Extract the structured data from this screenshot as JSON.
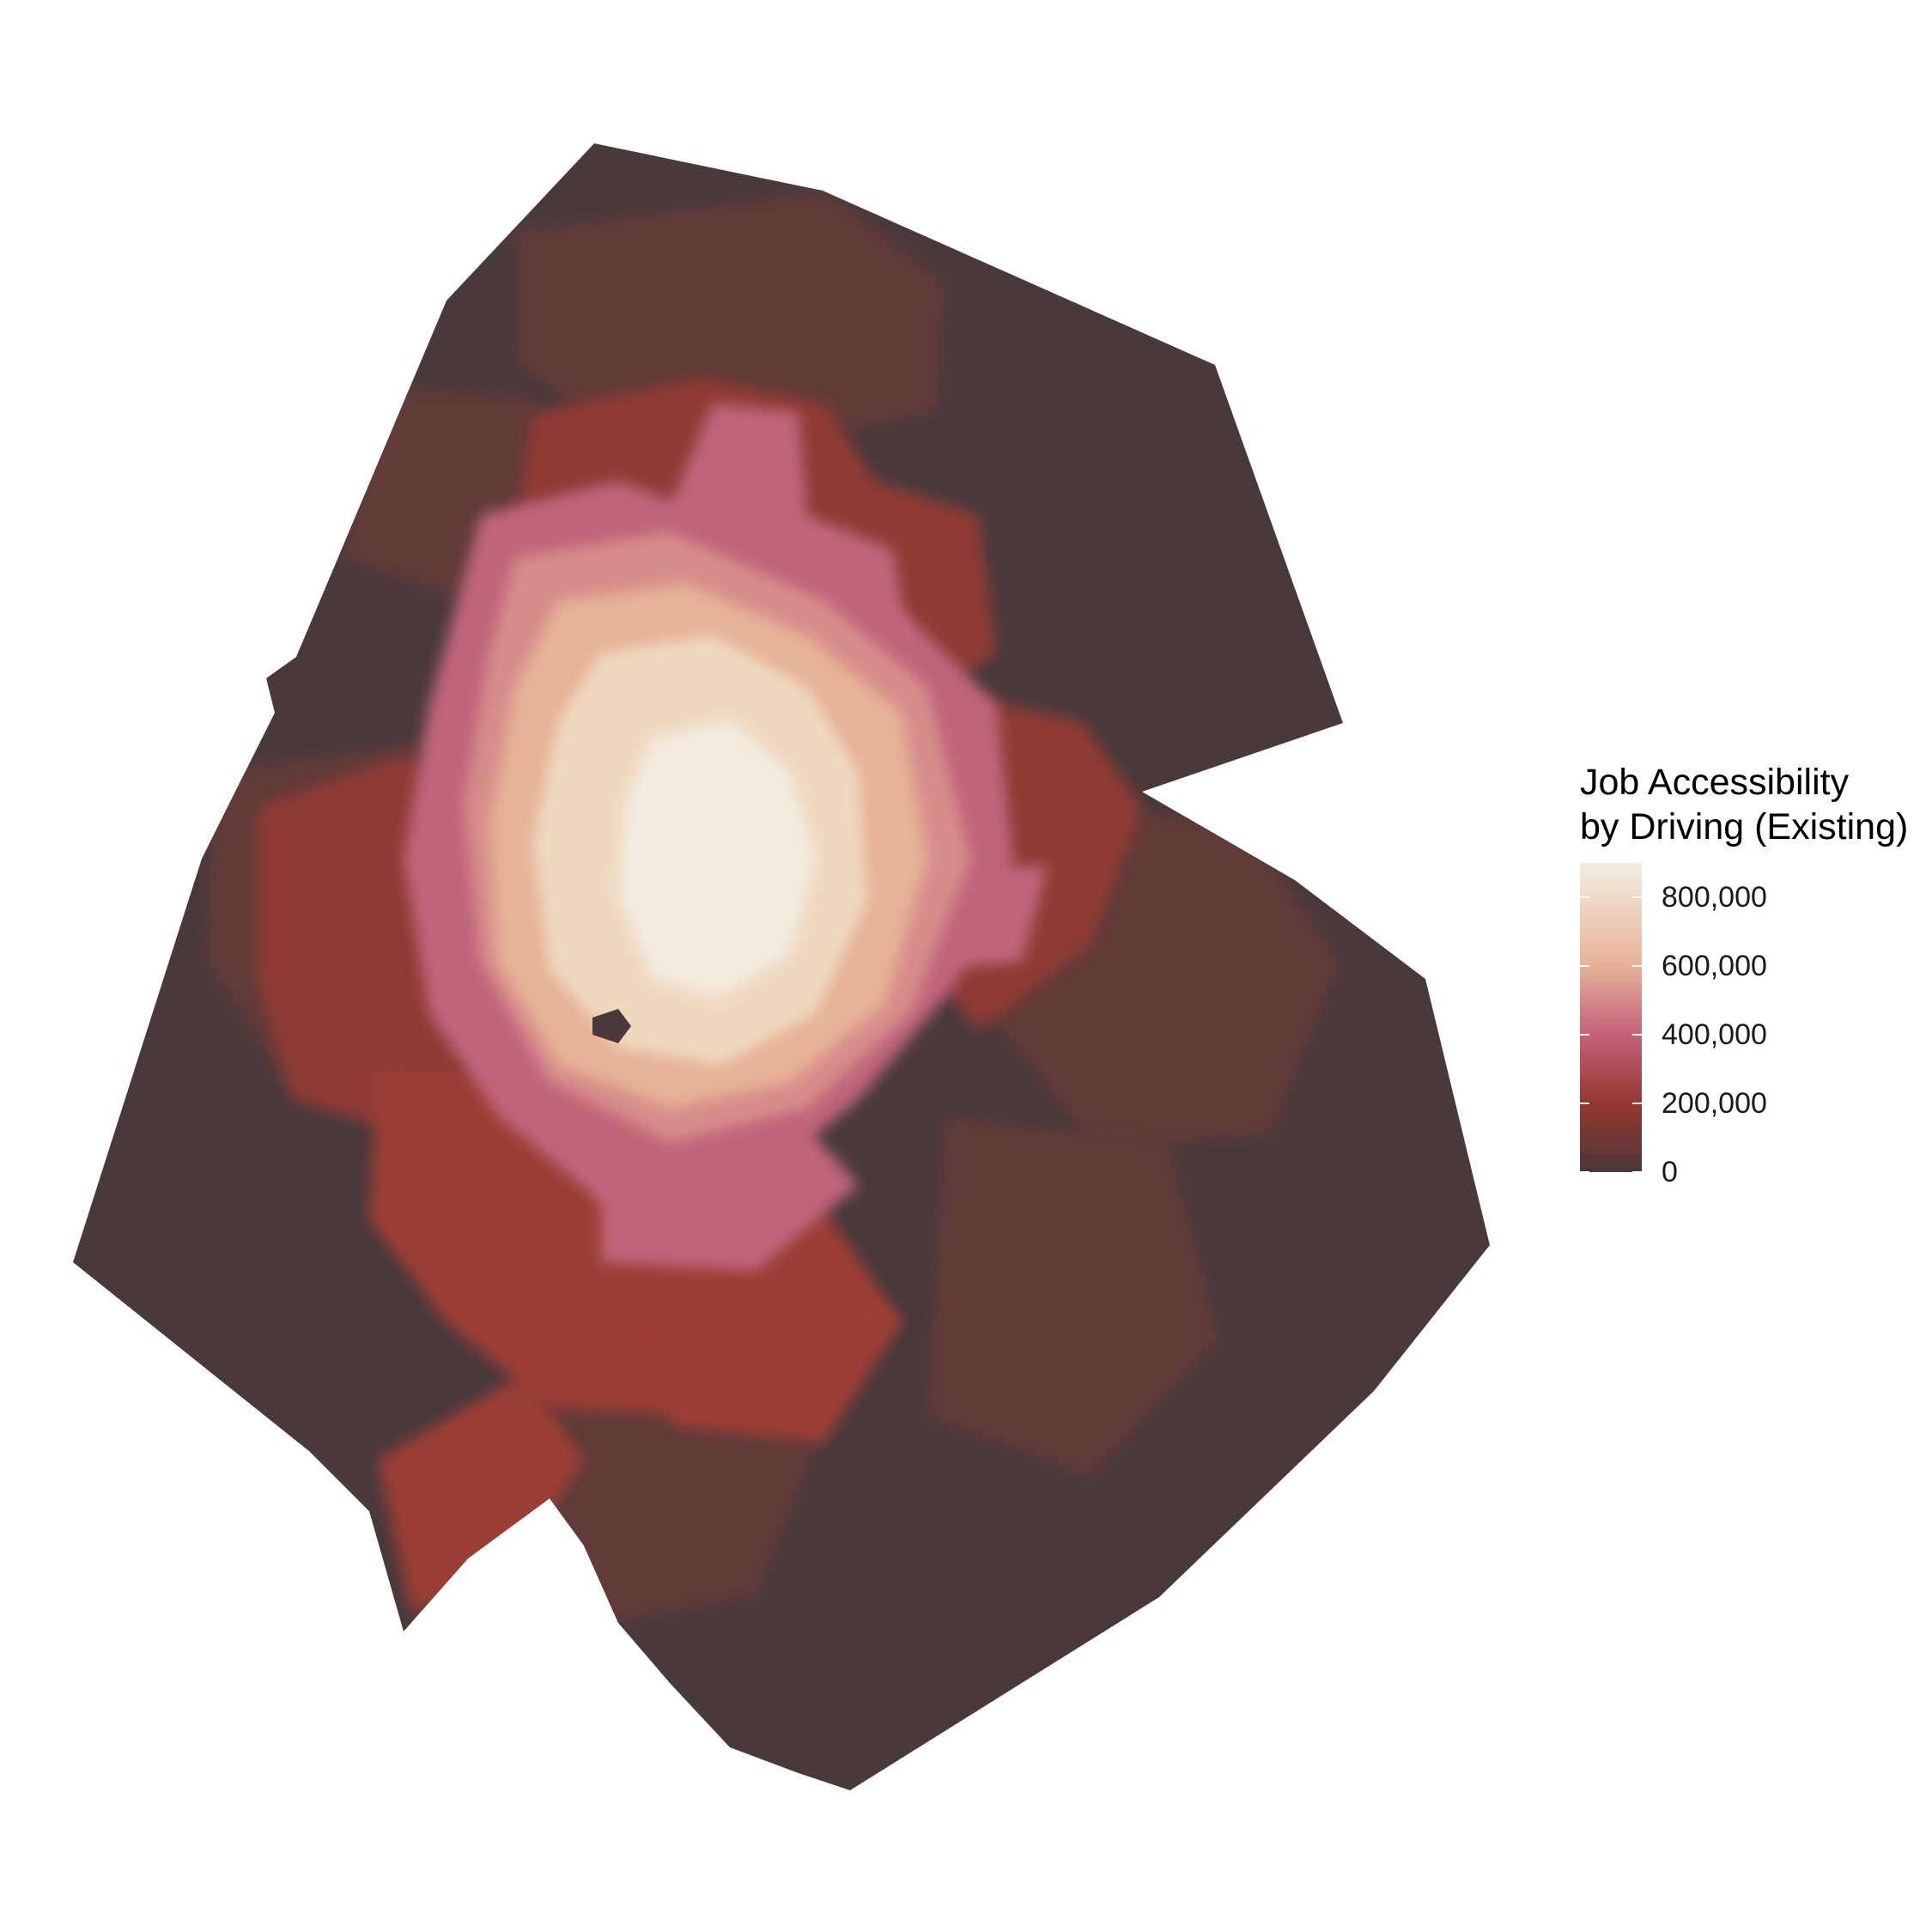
{
  "legend": {
    "title_line1": "Job Accessibility",
    "title_line2": "by Driving (Existing)",
    "ticks": [
      {
        "label": "800,000",
        "value": 800000
      },
      {
        "label": "600,000",
        "value": 600000
      },
      {
        "label": "400,000",
        "value": 400000
      },
      {
        "label": "200,000",
        "value": 200000
      },
      {
        "label": "0",
        "value": 0
      }
    ],
    "scale_min": 0,
    "scale_max": 900000,
    "colors": {
      "low": "#4a3739",
      "mid_low": "#94372f",
      "mid": "#c4637b",
      "mid_high": "#e8b59a",
      "high": "#f2ede0"
    }
  },
  "map": {
    "colors": {
      "base": "#4a393b",
      "dark_red": "#603a38",
      "red": "#8f3b35",
      "deep_red": "#9c3d35",
      "rose": "#c0657a",
      "pink": "#d78d8a",
      "peach": "#e6b396",
      "cream": "#efd8c0",
      "light": "#f3ece0"
    }
  }
}
